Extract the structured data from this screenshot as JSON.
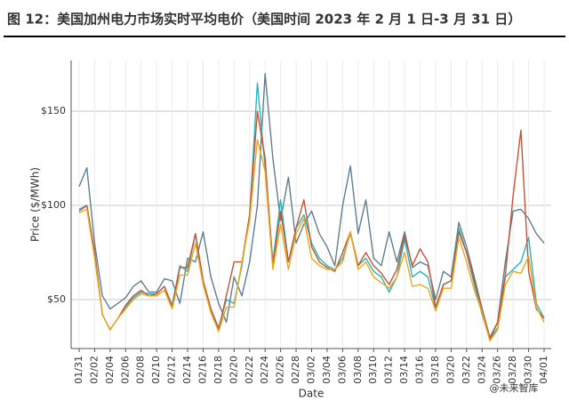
{
  "title": "图 12：美国加州电力市场实时平均电价（美国时间 2023 年 2 月 1 日-3 月 31 日）",
  "watermark": "@未来智库",
  "chart_data": {
    "type": "line",
    "x_label": "Date",
    "y_label": "Price ($/MWh)",
    "categories": [
      "01/31",
      null,
      "02/02",
      null,
      "02/04",
      null,
      "02/06",
      null,
      "02/08",
      null,
      "02/10",
      null,
      "02/12",
      null,
      "02/14",
      null,
      "02/16",
      null,
      "02/18",
      null,
      "02/20",
      null,
      "02/22",
      null,
      "02/24",
      null,
      "02/26",
      null,
      "02/28",
      null,
      "03/02",
      null,
      "03/04",
      null,
      "03/06",
      null,
      "03/08",
      null,
      "03/10",
      null,
      "03/12",
      null,
      "03/14",
      null,
      "03/16",
      null,
      "03/18",
      null,
      "03/20",
      null,
      "03/22",
      null,
      "03/24",
      null,
      "03/26",
      null,
      "03/28",
      null,
      "03/30",
      null,
      "04/01"
    ],
    "ylim": [
      24,
      177
    ],
    "yticks": [
      {
        "value": 50,
        "label": "$50"
      },
      {
        "value": 100,
        "label": "$100"
      },
      {
        "value": 150,
        "label": "$150"
      }
    ],
    "grid": true,
    "series": [
      {
        "color": "#5f7f8f",
        "values": [
          110,
          120,
          80,
          52,
          45,
          48,
          51,
          57,
          60,
          54,
          54,
          61,
          60,
          48,
          72,
          70,
          86,
          62,
          48,
          38,
          62,
          52,
          70,
          100,
          170,
          125,
          92,
          115,
          80,
          90,
          97,
          85,
          78,
          68,
          100,
          121,
          85,
          103,
          72,
          68,
          86,
          70,
          86,
          67,
          70,
          68,
          50,
          65,
          62,
          91,
          78,
          62,
          45,
          30,
          38,
          70,
          97,
          98,
          93,
          85,
          80
        ]
      },
      {
        "color": "#29b5bd",
        "values": [
          98,
          100,
          75,
          42,
          34,
          40,
          46,
          51,
          54,
          53,
          53,
          57,
          47,
          68,
          65,
          85,
          60,
          45,
          35,
          50,
          48,
          68,
          95,
          165,
          120,
          70,
          103,
          70,
          88,
          95,
          80,
          72,
          68,
          66,
          72,
          85,
          68,
          72,
          65,
          62,
          54,
          62,
          82,
          62,
          65,
          62,
          45,
          58,
          60,
          88,
          75,
          58,
          42,
          29,
          35,
          62,
          66,
          70,
          83,
          48,
          40
        ]
      },
      {
        "color": "#c2553a",
        "values": [
          97,
          100,
          75,
          42,
          34,
          40,
          47,
          52,
          55,
          52,
          53,
          57,
          46,
          67,
          67,
          85,
          60,
          45,
          34,
          52,
          70,
          70,
          95,
          150,
          125,
          68,
          97,
          70,
          88,
          103,
          78,
          70,
          67,
          65,
          75,
          86,
          68,
          75,
          68,
          64,
          58,
          66,
          84,
          68,
          77,
          70,
          46,
          58,
          60,
          86,
          75,
          60,
          45,
          29,
          38,
          63,
          105,
          140,
          65,
          45,
          40
        ]
      },
      {
        "color": "#e9a81e",
        "values": [
          96,
          98,
          72,
          42,
          34,
          40,
          45,
          50,
          53,
          52,
          52,
          55,
          45,
          63,
          63,
          80,
          58,
          43,
          33,
          46,
          46,
          70,
          92,
          135,
          118,
          66,
          90,
          66,
          85,
          93,
          72,
          68,
          66,
          66,
          70,
          86,
          66,
          70,
          62,
          59,
          56,
          62,
          75,
          57,
          58,
          56,
          44,
          56,
          56,
          83,
          70,
          55,
          43,
          28,
          34,
          58,
          65,
          64,
          73,
          46,
          38
        ]
      }
    ]
  }
}
